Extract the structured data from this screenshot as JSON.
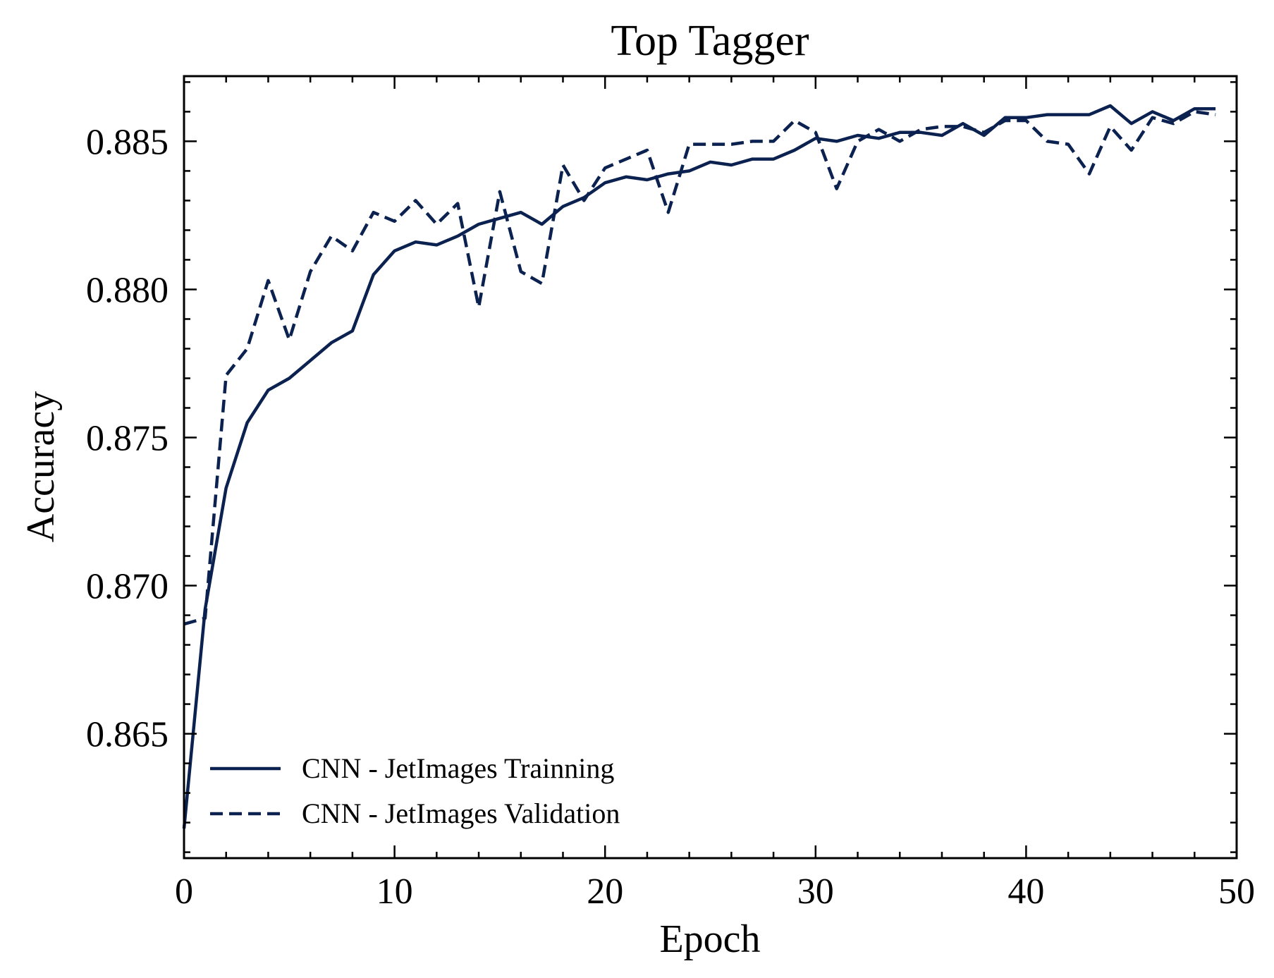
{
  "chart_data": {
    "type": "line",
    "title": "Top Tagger",
    "xlabel": "Epoch",
    "ylabel": "Accuracy",
    "xlim": [
      0,
      50
    ],
    "ylim": [
      0.8608,
      0.8872
    ],
    "xticks": [
      0,
      10,
      20,
      30,
      40,
      50
    ],
    "xtick_labels": [
      "0",
      "10",
      "20",
      "30",
      "40",
      "50"
    ],
    "yticks": [
      0.865,
      0.87,
      0.875,
      0.88,
      0.885
    ],
    "ytick_labels": [
      "0.865",
      "0.870",
      "0.875",
      "0.880",
      "0.885"
    ],
    "grid": false,
    "legend_position": "lower-left",
    "color": "#0b2150",
    "x": [
      0,
      1,
      2,
      3,
      4,
      5,
      6,
      7,
      8,
      9,
      10,
      11,
      12,
      13,
      14,
      15,
      16,
      17,
      18,
      19,
      20,
      21,
      22,
      23,
      24,
      25,
      26,
      27,
      28,
      29,
      30,
      31,
      32,
      33,
      34,
      35,
      36,
      37,
      38,
      39,
      40,
      41,
      42,
      43,
      44,
      45,
      46,
      47,
      48,
      49
    ],
    "series": [
      {
        "name": "CNN - JetImages Trainning",
        "style": "solid",
        "values": [
          0.8618,
          0.8692,
          0.8733,
          0.8755,
          0.8766,
          0.877,
          0.8776,
          0.8782,
          0.8786,
          0.8805,
          0.8813,
          0.8816,
          0.8815,
          0.8818,
          0.8822,
          0.8824,
          0.8826,
          0.8822,
          0.8828,
          0.8831,
          0.8836,
          0.8838,
          0.8837,
          0.8839,
          0.884,
          0.8843,
          0.8842,
          0.8844,
          0.8844,
          0.8847,
          0.8851,
          0.885,
          0.8852,
          0.8851,
          0.8853,
          0.8853,
          0.8852,
          0.8856,
          0.8852,
          0.8858,
          0.8858,
          0.8859,
          0.8859,
          0.8859,
          0.8862,
          0.8856,
          0.886,
          0.8857,
          0.8861,
          0.8861
        ]
      },
      {
        "name": "CNN - JetImages Validation",
        "style": "dashed",
        "values": [
          0.8687,
          0.8689,
          0.8771,
          0.878,
          0.8803,
          0.8783,
          0.8806,
          0.8818,
          0.8813,
          0.8826,
          0.8823,
          0.883,
          0.8822,
          0.8829,
          0.8794,
          0.8833,
          0.8806,
          0.8802,
          0.8842,
          0.883,
          0.8841,
          0.8844,
          0.8847,
          0.8826,
          0.8849,
          0.8849,
          0.8849,
          0.885,
          0.885,
          0.8857,
          0.8853,
          0.8834,
          0.885,
          0.8854,
          0.885,
          0.8854,
          0.8855,
          0.8855,
          0.8853,
          0.8857,
          0.8857,
          0.885,
          0.8849,
          0.8839,
          0.8855,
          0.8847,
          0.8858,
          0.8856,
          0.886,
          0.8859
        ]
      }
    ]
  }
}
